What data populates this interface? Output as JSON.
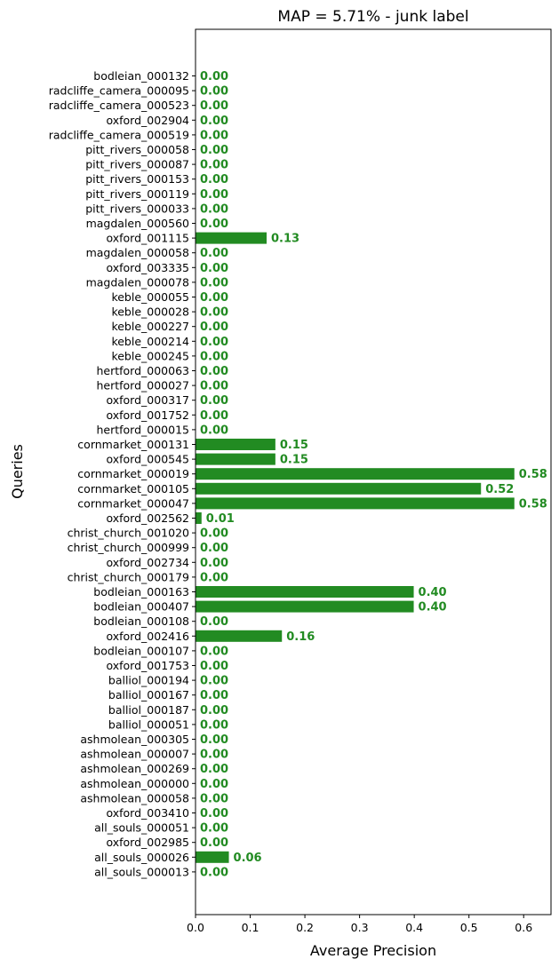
{
  "chart_data": {
    "type": "bar",
    "orientation": "horizontal",
    "title": "MAP = 5.71% - junk label",
    "xlabel": "Average Precision",
    "ylabel": "Queries",
    "xlim": [
      0,
      0.65
    ],
    "xticks": [
      "0.0",
      "0.1",
      "0.2",
      "0.3",
      "0.4",
      "0.5",
      "0.6"
    ],
    "grid": false,
    "bar_color": "#228b22",
    "label_color": "#228b22",
    "categories": [
      "bodleian_000132",
      "radcliffe_camera_000095",
      "radcliffe_camera_000523",
      "oxford_002904",
      "radcliffe_camera_000519",
      "pitt_rivers_000058",
      "pitt_rivers_000087",
      "pitt_rivers_000153",
      "pitt_rivers_000119",
      "pitt_rivers_000033",
      "magdalen_000560",
      "oxford_001115",
      "magdalen_000058",
      "oxford_003335",
      "magdalen_000078",
      "keble_000055",
      "keble_000028",
      "keble_000227",
      "keble_000214",
      "keble_000245",
      "hertford_000063",
      "hertford_000027",
      "oxford_000317",
      "oxford_001752",
      "hertford_000015",
      "cornmarket_000131",
      "oxford_000545",
      "cornmarket_000019",
      "cornmarket_000105",
      "cornmarket_000047",
      "oxford_002562",
      "christ_church_001020",
      "christ_church_000999",
      "oxford_002734",
      "christ_church_000179",
      "bodleian_000163",
      "bodleian_000407",
      "bodleian_000108",
      "oxford_002416",
      "bodleian_000107",
      "oxford_001753",
      "balliol_000194",
      "balliol_000167",
      "balliol_000187",
      "balliol_000051",
      "ashmolean_000305",
      "ashmolean_000007",
      "ashmolean_000269",
      "ashmolean_000000",
      "ashmolean_000058",
      "oxford_003410",
      "all_souls_000051",
      "oxford_002985",
      "all_souls_000026",
      "all_souls_000013"
    ],
    "values": [
      0,
      0,
      0,
      0,
      0,
      0,
      0,
      0,
      0,
      0,
      0,
      0.13,
      0,
      0,
      0,
      0,
      0,
      0,
      0,
      0,
      0,
      0,
      0,
      0,
      0,
      0.146,
      0.146,
      0.583,
      0.522,
      0.583,
      0.011,
      0,
      0,
      0,
      0,
      0.399,
      0.399,
      0,
      0.158,
      0,
      0,
      0,
      0,
      0,
      0,
      0,
      0,
      0,
      0,
      0,
      0,
      0,
      0,
      0.061,
      0
    ],
    "value_labels": [
      "0.00",
      "0.00",
      "0.00",
      "0.00",
      "0.00",
      "0.00",
      "0.00",
      "0.00",
      "0.00",
      "0.00",
      "0.00",
      "0.13",
      "0.00",
      "0.00",
      "0.00",
      "0.00",
      "0.00",
      "0.00",
      "0.00",
      "0.00",
      "0.00",
      "0.00",
      "0.00",
      "0.00",
      "0.00",
      "0.15",
      "0.15",
      "0.58",
      "0.52",
      "0.58",
      "0.01",
      "0.00",
      "0.00",
      "0.00",
      "0.00",
      "0.40",
      "0.40",
      "0.00",
      "0.16",
      "0.00",
      "0.00",
      "0.00",
      "0.00",
      "0.00",
      "0.00",
      "0.00",
      "0.00",
      "0.00",
      "0.00",
      "0.00",
      "0.00",
      "0.00",
      "0.00",
      "0.06",
      "0.00"
    ]
  }
}
